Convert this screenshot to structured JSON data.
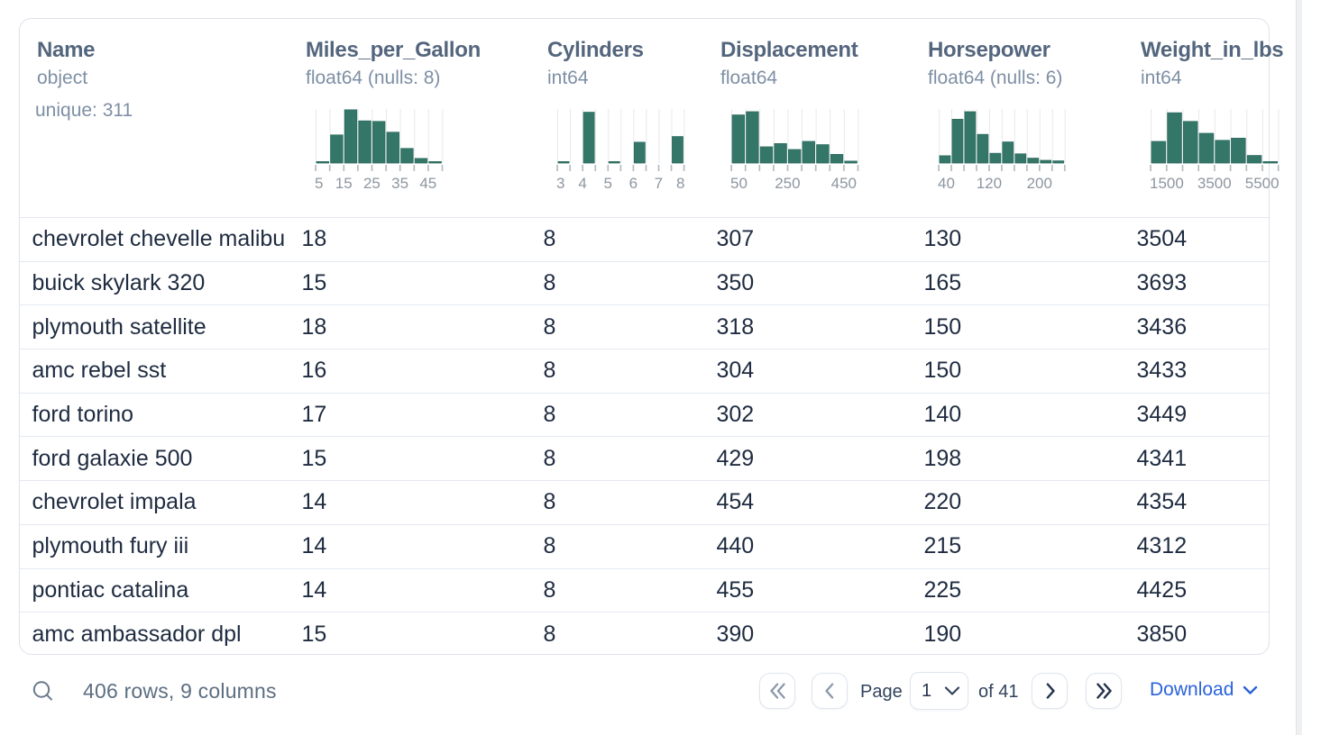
{
  "widget": "data table",
  "colors": {
    "bar_fill": "#347769",
    "bar_edge": "#2d6c5f",
    "gridline": "#e9e9e9",
    "tick": "#b6bcc4",
    "tick_label": "#8d96a0",
    "header_title": "#54667d",
    "header_dtype": "#7e8fa4",
    "row_text": "#1e2b40",
    "separator": "#e4e9f1",
    "accent_blue": "#2b63d9"
  },
  "table": {
    "columns": [
      {
        "name": "Name",
        "dtype": "object",
        "unique": "unique: 311",
        "histogram": null
      },
      {
        "name": "Miles_per_Gallon",
        "dtype": "float64 (nulls: 8)",
        "histogram": {
          "type": "bar",
          "x_min": 5,
          "x_max": 50,
          "bin_width": 5,
          "tick_labels": [
            "5",
            "",
            "15",
            "",
            "25",
            "",
            "35",
            "",
            "45",
            ""
          ],
          "bar_heights_rel": [
            0.02,
            0.52,
            0.985,
            0.78,
            0.77,
            0.57,
            0.27,
            0.085,
            0.02
          ]
        }
      },
      {
        "name": "Cylinders",
        "dtype": "int64",
        "histogram": {
          "type": "bar",
          "x_min": 3,
          "x_max": 8,
          "bin_width": 0.5,
          "tick_labels": [
            "3",
            "",
            "4",
            "",
            "5",
            "",
            "6",
            "",
            "7",
            "",
            "8"
          ],
          "bar_heights_rel": [
            0.02,
            0,
            0.94,
            0,
            0.02,
            0,
            0.385,
            0,
            0,
            0.49
          ]
        }
      },
      {
        "name": "Displacement",
        "dtype": "float64",
        "histogram": {
          "type": "bar",
          "x_min": 50,
          "x_max": 500,
          "bin_width": 50,
          "tick_labels": [
            "50",
            "",
            "",
            "",
            "250",
            "",
            "",
            "",
            "450",
            ""
          ],
          "bar_heights_rel": [
            0.89,
            0.95,
            0.3,
            0.36,
            0.25,
            0.4,
            0.34,
            0.16,
            0.035
          ]
        }
      },
      {
        "name": "Horsepower",
        "dtype": "float64 (nulls: 6)",
        "histogram": {
          "type": "bar",
          "x_min": 40,
          "x_max": 240,
          "bin_width": 20,
          "tick_labels": [
            "40",
            "",
            "",
            "",
            "120",
            "",
            "",
            "",
            "200",
            "",
            ""
          ],
          "bar_heights_rel": [
            0.135,
            0.81,
            0.95,
            0.53,
            0.18,
            0.39,
            0.17,
            0.09,
            0.05,
            0.04
          ]
        }
      },
      {
        "name": "Weight_in_lbs",
        "dtype": "int64",
        "histogram": {
          "type": "bar",
          "x_min": 1500,
          "x_max": 5500,
          "bin_width": 500,
          "tick_labels": [
            "1500",
            "",
            "",
            "",
            "3500",
            "",
            "",
            "",
            "5500"
          ],
          "bar_heights_rel": [
            0.4,
            0.93,
            0.77,
            0.55,
            0.42,
            0.46,
            0.14,
            0.02
          ]
        }
      }
    ],
    "rows": [
      [
        "chevrolet chevelle malibu",
        "18",
        "8",
        "307",
        "130",
        "3504"
      ],
      [
        "buick skylark 320",
        "15",
        "8",
        "350",
        "165",
        "3693"
      ],
      [
        "plymouth satellite",
        "18",
        "8",
        "318",
        "150",
        "3436"
      ],
      [
        "amc rebel sst",
        "16",
        "8",
        "304",
        "150",
        "3433"
      ],
      [
        "ford torino",
        "17",
        "8",
        "302",
        "140",
        "3449"
      ],
      [
        "ford galaxie 500",
        "15",
        "8",
        "429",
        "198",
        "4341"
      ],
      [
        "chevrolet impala",
        "14",
        "8",
        "454",
        "220",
        "4354"
      ],
      [
        "plymouth fury iii",
        "14",
        "8",
        "440",
        "215",
        "4312"
      ],
      [
        "pontiac catalina",
        "14",
        "8",
        "455",
        "225",
        "4425"
      ],
      [
        "amc ambassador dpl",
        "15",
        "8",
        "390",
        "190",
        "3850"
      ]
    ]
  },
  "footer": {
    "search_icon": "magnifier-icon",
    "rows_summary": "406 rows, 9 columns",
    "pagination": {
      "first_icon": "chevrons-left",
      "prev_icon": "chevron-left",
      "page_label": "Page",
      "current_page": "1",
      "of_label": "of 41",
      "next_icon": "chevron-right",
      "last_icon": "chevrons-right"
    },
    "download_label": "Download"
  }
}
